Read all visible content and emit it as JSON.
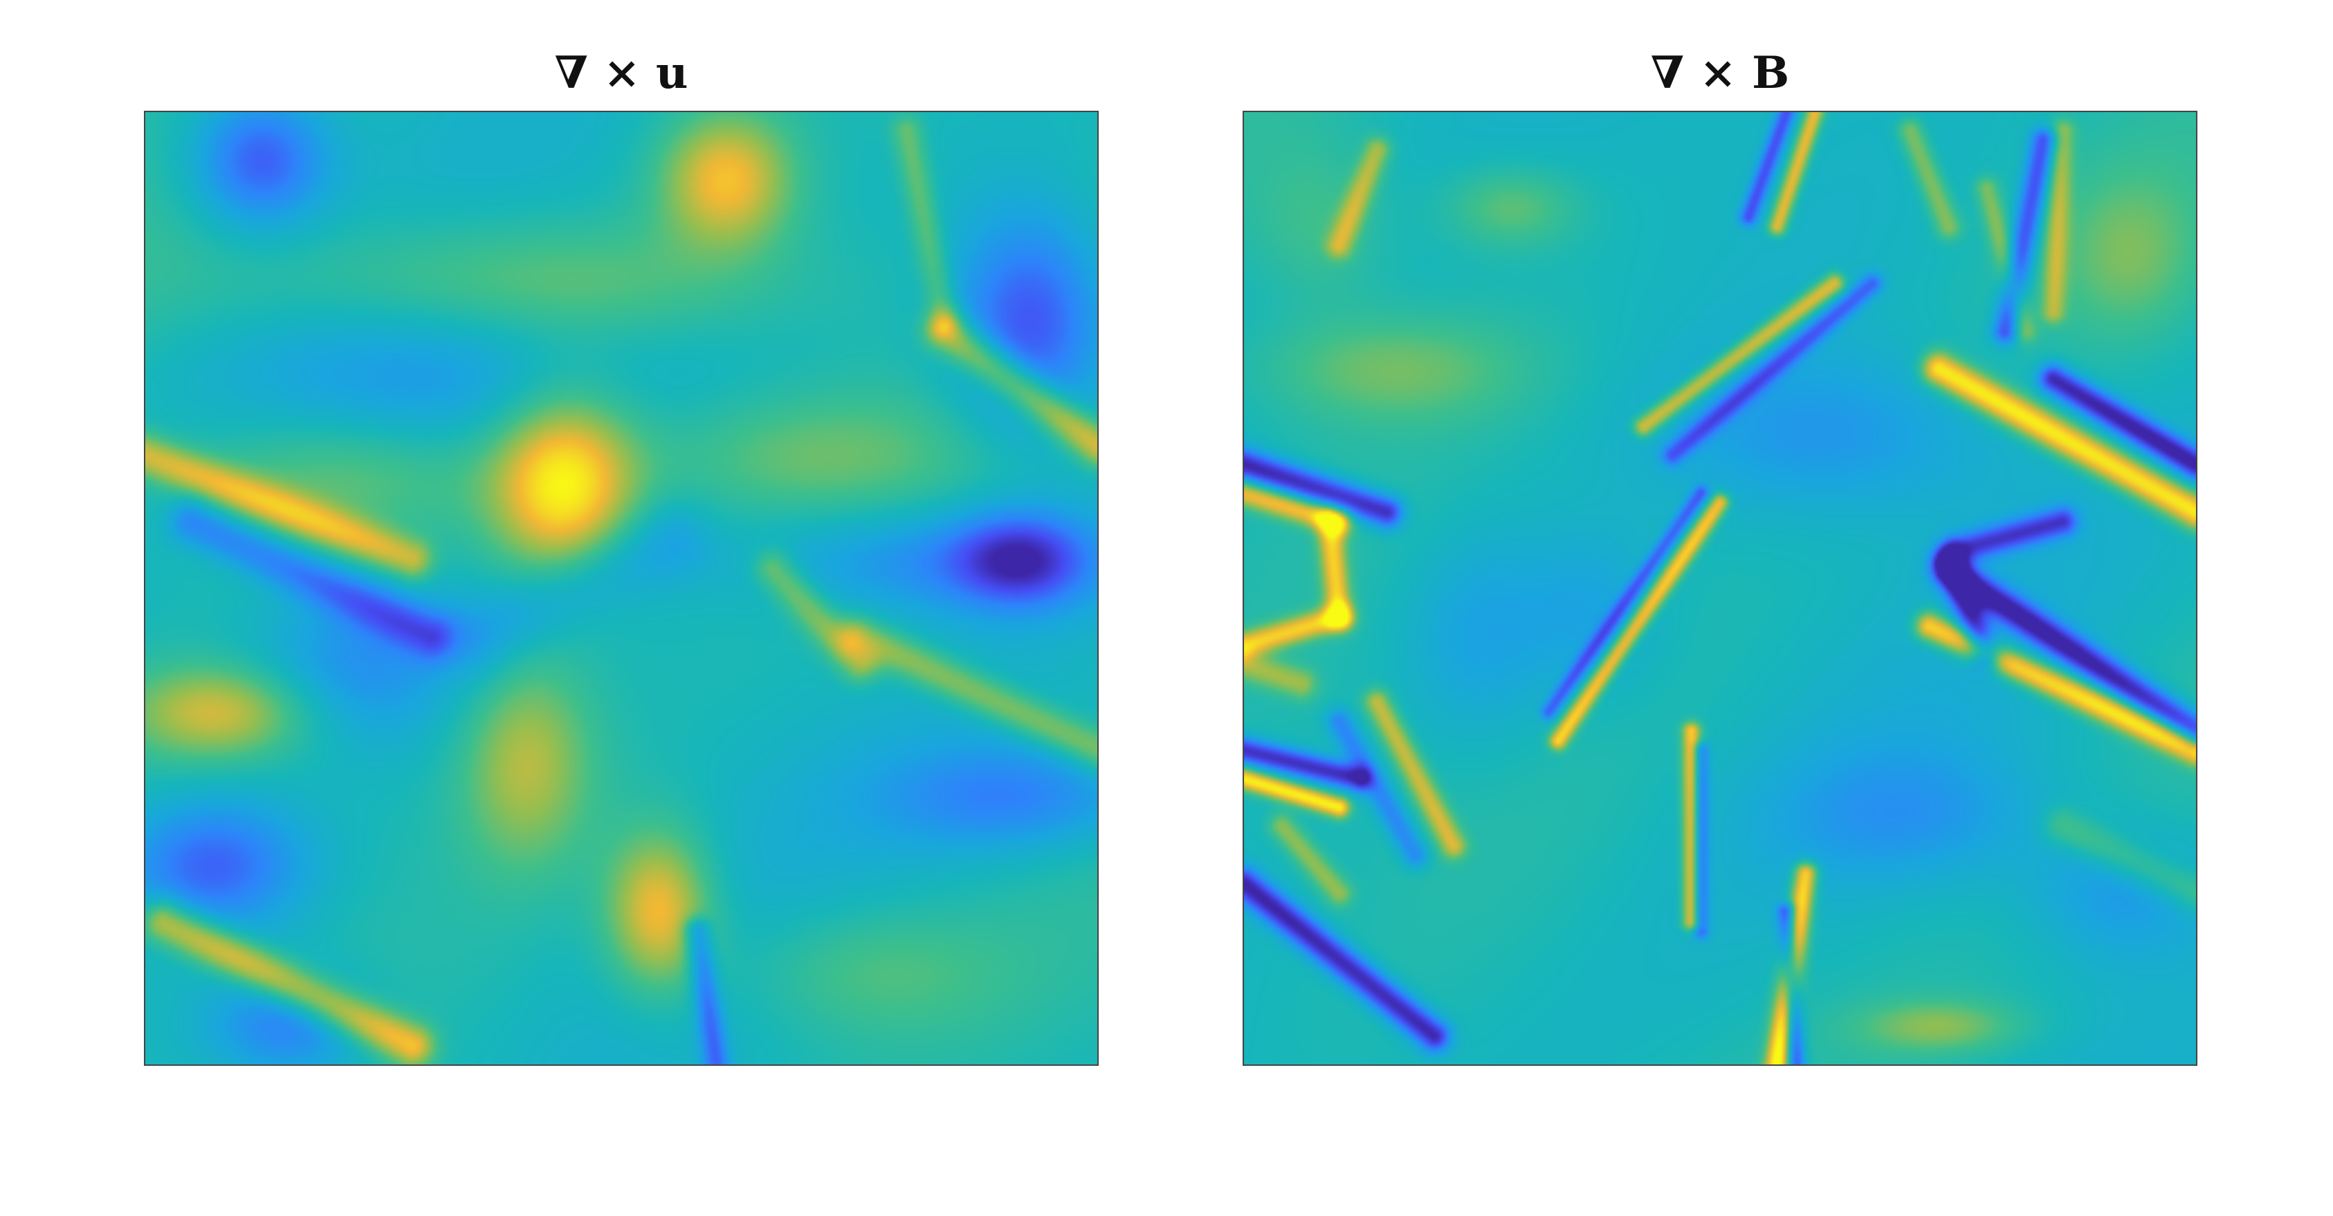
{
  "chart_data": [
    {
      "type": "heatmap",
      "title": "∇ × u",
      "colormap": "parula",
      "axes_visible": false,
      "grid": false,
      "colorbar": false,
      "features": [
        {
          "kind": "blob",
          "x": 0.12,
          "y": 0.05,
          "value": -0.75,
          "sx": 0.05,
          "sy": 0.05
        },
        {
          "kind": "blob",
          "x": 0.93,
          "y": 0.22,
          "value": -0.85,
          "sx": 0.06,
          "sy": 0.08
        },
        {
          "kind": "blob",
          "x": 0.61,
          "y": 0.07,
          "value": 0.75,
          "sx": 0.05,
          "sy": 0.05
        },
        {
          "kind": "blob",
          "x": 0.44,
          "y": 0.39,
          "value": 1.0,
          "sx": 0.055,
          "sy": 0.07
        },
        {
          "kind": "blob",
          "x": 0.08,
          "y": 0.63,
          "value": 0.6,
          "sx": 0.07,
          "sy": 0.035
        },
        {
          "kind": "blob",
          "x": 0.07,
          "y": 0.79,
          "value": -0.7,
          "sx": 0.07,
          "sy": 0.05
        },
        {
          "kind": "blob",
          "x": 0.4,
          "y": 0.68,
          "value": 0.55,
          "sx": 0.05,
          "sy": 0.08
        },
        {
          "kind": "blob",
          "x": 0.54,
          "y": 0.84,
          "value": 0.8,
          "sx": 0.04,
          "sy": 0.06
        },
        {
          "kind": "blob",
          "x": 0.39,
          "y": 0.18,
          "value": 0.4,
          "sx": 0.2,
          "sy": 0.05
        },
        {
          "kind": "blob",
          "x": 0.92,
          "y": 0.47,
          "value": -0.75,
          "sx": 0.05,
          "sy": 0.035
        },
        {
          "kind": "blob",
          "x": 0.82,
          "y": 0.47,
          "value": -0.45,
          "sx": 0.12,
          "sy": 0.04
        },
        {
          "kind": "blob",
          "x": 0.22,
          "y": 0.58,
          "value": -0.45,
          "sx": 0.08,
          "sy": 0.06
        },
        {
          "kind": "blob",
          "x": 0.92,
          "y": 0.72,
          "value": -0.5,
          "sx": 0.1,
          "sy": 0.04
        },
        {
          "kind": "blob",
          "x": 0.3,
          "y": 0.28,
          "value": -0.35,
          "sx": 0.15,
          "sy": 0.06
        },
        {
          "kind": "blob",
          "x": 0.68,
          "y": 0.36,
          "value": 0.35,
          "sx": 0.12,
          "sy": 0.05
        },
        {
          "kind": "blob",
          "x": 0.15,
          "y": 0.96,
          "value": -0.55,
          "sx": 0.06,
          "sy": 0.04
        },
        {
          "kind": "blob",
          "x": 0.2,
          "y": 0.38,
          "value": 0.35,
          "sx": 0.12,
          "sy": 0.05
        },
        {
          "kind": "blob",
          "x": 0.75,
          "y": 0.9,
          "value": 0.3,
          "sx": 0.1,
          "sy": 0.05
        },
        {
          "kind": "band",
          "x1": 0.0,
          "y1": 0.36,
          "x2": 0.28,
          "y2": 0.47,
          "value": 0.6,
          "width": 0.016
        },
        {
          "kind": "band",
          "x1": 0.05,
          "y1": 0.43,
          "x2": 0.3,
          "y2": 0.55,
          "value": -0.55,
          "width": 0.018
        },
        {
          "kind": "band",
          "x1": 0.84,
          "y1": 0.23,
          "x2": 1.0,
          "y2": 0.35,
          "value": 0.7,
          "width": 0.016
        },
        {
          "kind": "band",
          "x1": 0.02,
          "y1": 0.85,
          "x2": 0.28,
          "y2": 0.98,
          "value": 0.75,
          "width": 0.017
        },
        {
          "kind": "band",
          "x1": 0.75,
          "y1": 0.55,
          "x2": 1.0,
          "y2": 0.67,
          "value": 0.5,
          "width": 0.016
        },
        {
          "kind": "band",
          "x1": 0.66,
          "y1": 0.48,
          "x2": 0.75,
          "y2": 0.58,
          "value": 0.45,
          "width": 0.015
        },
        {
          "kind": "band",
          "x1": 0.58,
          "y1": 0.86,
          "x2": 0.6,
          "y2": 1.0,
          "value": -0.6,
          "width": 0.01
        },
        {
          "kind": "band",
          "x1": 0.8,
          "y1": 0.02,
          "x2": 0.84,
          "y2": 0.22,
          "value": 0.35,
          "width": 0.012
        },
        {
          "kind": "band",
          "x1": 0.35,
          "y1": 0.55,
          "x2": 0.55,
          "y2": 0.45,
          "value": -0.3,
          "width": 0.03
        }
      ]
    },
    {
      "type": "heatmap",
      "title": "∇ × B",
      "colormap": "parula",
      "axes_visible": false,
      "grid": false,
      "colorbar": false,
      "features": [
        {
          "kind": "band",
          "x1": 0.73,
          "y1": 0.27,
          "x2": 1.0,
          "y2": 0.42,
          "value": 1.0,
          "width": 0.013
        },
        {
          "kind": "band",
          "x1": 0.85,
          "y1": 0.28,
          "x2": 1.0,
          "y2": 0.37,
          "value": -1.0,
          "width": 0.011
        },
        {
          "kind": "band",
          "x1": 0.72,
          "y1": 0.54,
          "x2": 1.0,
          "y2": 0.67,
          "value": 0.95,
          "width": 0.011
        },
        {
          "kind": "band",
          "x1": 0.74,
          "y1": 0.48,
          "x2": 1.0,
          "y2": 0.65,
          "value": -1.0,
          "width": 0.012
        },
        {
          "kind": "band",
          "x1": 0.74,
          "y1": 0.47,
          "x2": 0.78,
          "y2": 0.57,
          "value": -0.85,
          "width": 0.011
        },
        {
          "kind": "band",
          "x1": 0.75,
          "y1": 0.46,
          "x2": 0.86,
          "y2": 0.43,
          "value": -0.8,
          "width": 0.011
        },
        {
          "kind": "band",
          "x1": 0.0,
          "y1": 0.37,
          "x2": 0.15,
          "y2": 0.42,
          "value": -1.0,
          "width": 0.012
        },
        {
          "kind": "band",
          "x1": 0.0,
          "y1": 0.4,
          "x2": 0.1,
          "y2": 0.43,
          "value": 0.75,
          "width": 0.01
        },
        {
          "kind": "band",
          "x1": 0.0,
          "y1": 0.56,
          "x2": 0.1,
          "y2": 0.53,
          "value": 0.75,
          "width": 0.01
        },
        {
          "kind": "band",
          "x1": 0.09,
          "y1": 0.43,
          "x2": 0.1,
          "y2": 0.53,
          "value": 0.75,
          "width": 0.01
        },
        {
          "kind": "band",
          "x1": 0.0,
          "y1": 0.67,
          "x2": 0.12,
          "y2": 0.7,
          "value": -0.95,
          "width": 0.01
        },
        {
          "kind": "band",
          "x1": 0.0,
          "y1": 0.7,
          "x2": 0.1,
          "y2": 0.73,
          "value": 0.95,
          "width": 0.008
        },
        {
          "kind": "band",
          "x1": 0.0,
          "y1": 0.81,
          "x2": 0.2,
          "y2": 0.97,
          "value": -1.0,
          "width": 0.012
        },
        {
          "kind": "band",
          "x1": 0.14,
          "y1": 0.62,
          "x2": 0.22,
          "y2": 0.77,
          "value": 0.6,
          "width": 0.01
        },
        {
          "kind": "band",
          "x1": 0.1,
          "y1": 0.64,
          "x2": 0.18,
          "y2": 0.78,
          "value": -0.5,
          "width": 0.01
        },
        {
          "kind": "band",
          "x1": 0.04,
          "y1": 0.75,
          "x2": 0.1,
          "y2": 0.82,
          "value": 0.45,
          "width": 0.01
        },
        {
          "kind": "band",
          "x1": 0.59,
          "y1": 0.8,
          "x2": 0.56,
          "y2": 1.0,
          "value": 1.0,
          "width": 0.009
        },
        {
          "kind": "band",
          "x1": 0.57,
          "y1": 0.84,
          "x2": 0.58,
          "y2": 1.0,
          "value": -0.8,
          "width": 0.007
        },
        {
          "kind": "band",
          "x1": 0.47,
          "y1": 0.65,
          "x2": 0.47,
          "y2": 0.85,
          "value": 0.8,
          "width": 0.007
        },
        {
          "kind": "band",
          "x1": 0.48,
          "y1": 0.67,
          "x2": 0.48,
          "y2": 0.86,
          "value": -0.6,
          "width": 0.006
        },
        {
          "kind": "band",
          "x1": 0.33,
          "y1": 0.66,
          "x2": 0.5,
          "y2": 0.41,
          "value": 0.85,
          "width": 0.007
        },
        {
          "kind": "band",
          "x1": 0.32,
          "y1": 0.63,
          "x2": 0.48,
          "y2": 0.4,
          "value": -0.6,
          "width": 0.006
        },
        {
          "kind": "band",
          "x1": 0.42,
          "y1": 0.33,
          "x2": 0.62,
          "y2": 0.18,
          "value": 0.75,
          "width": 0.008
        },
        {
          "kind": "band",
          "x1": 0.45,
          "y1": 0.36,
          "x2": 0.66,
          "y2": 0.18,
          "value": -0.6,
          "width": 0.008
        },
        {
          "kind": "band",
          "x1": 0.6,
          "y1": 0.0,
          "x2": 0.56,
          "y2": 0.12,
          "value": 0.75,
          "width": 0.007
        },
        {
          "kind": "band",
          "x1": 0.57,
          "y1": 0.0,
          "x2": 0.53,
          "y2": 0.11,
          "value": -0.7,
          "width": 0.007
        },
        {
          "kind": "band",
          "x1": 0.84,
          "y1": 0.03,
          "x2": 0.8,
          "y2": 0.23,
          "value": -0.8,
          "width": 0.01
        },
        {
          "kind": "band",
          "x1": 0.86,
          "y1": 0.02,
          "x2": 0.85,
          "y2": 0.21,
          "value": 0.45,
          "width": 0.009
        },
        {
          "kind": "band",
          "x1": 0.78,
          "y1": 0.08,
          "x2": 0.82,
          "y2": 0.23,
          "value": 0.4,
          "width": 0.009
        },
        {
          "kind": "band",
          "x1": 0.14,
          "y1": 0.04,
          "x2": 0.1,
          "y2": 0.14,
          "value": 0.5,
          "width": 0.01
        },
        {
          "kind": "band",
          "x1": 0.7,
          "y1": 0.02,
          "x2": 0.74,
          "y2": 0.12,
          "value": 0.45,
          "width": 0.01
        },
        {
          "kind": "band",
          "x1": 0.0,
          "y1": 0.58,
          "x2": 0.06,
          "y2": 0.6,
          "value": 0.45,
          "width": 0.012
        },
        {
          "kind": "band",
          "x1": 0.86,
          "y1": 0.75,
          "x2": 1.0,
          "y2": 0.82,
          "value": 0.35,
          "width": 0.015
        },
        {
          "kind": "blob",
          "x": 0.15,
          "y": 0.27,
          "value": 0.35,
          "sx": 0.1,
          "sy": 0.04
        },
        {
          "kind": "blob",
          "x": 0.28,
          "y": 0.1,
          "value": 0.35,
          "sx": 0.05,
          "sy": 0.03
        },
        {
          "kind": "blob",
          "x": 0.62,
          "y": 0.34,
          "value": -0.35,
          "sx": 0.12,
          "sy": 0.06
        },
        {
          "kind": "blob",
          "x": 0.25,
          "y": 0.55,
          "value": -0.3,
          "sx": 0.06,
          "sy": 0.08
        },
        {
          "kind": "blob",
          "x": 0.92,
          "y": 0.82,
          "value": -0.35,
          "sx": 0.07,
          "sy": 0.05
        },
        {
          "kind": "blob",
          "x": 0.7,
          "y": 0.74,
          "value": -0.3,
          "sx": 0.1,
          "sy": 0.05
        },
        {
          "kind": "blob",
          "x": 0.08,
          "y": 0.12,
          "value": 0.25,
          "sx": 0.05,
          "sy": 0.06
        },
        {
          "kind": "blob",
          "x": 0.93,
          "y": 0.15,
          "value": 0.3,
          "sx": 0.05,
          "sy": 0.06
        },
        {
          "kind": "blob",
          "x": 0.37,
          "y": 0.53,
          "value": -0.25,
          "sx": 0.05,
          "sy": 0.06
        },
        {
          "kind": "blob",
          "x": 0.73,
          "y": 0.96,
          "value": 0.4,
          "sx": 0.06,
          "sy": 0.02
        }
      ]
    }
  ]
}
